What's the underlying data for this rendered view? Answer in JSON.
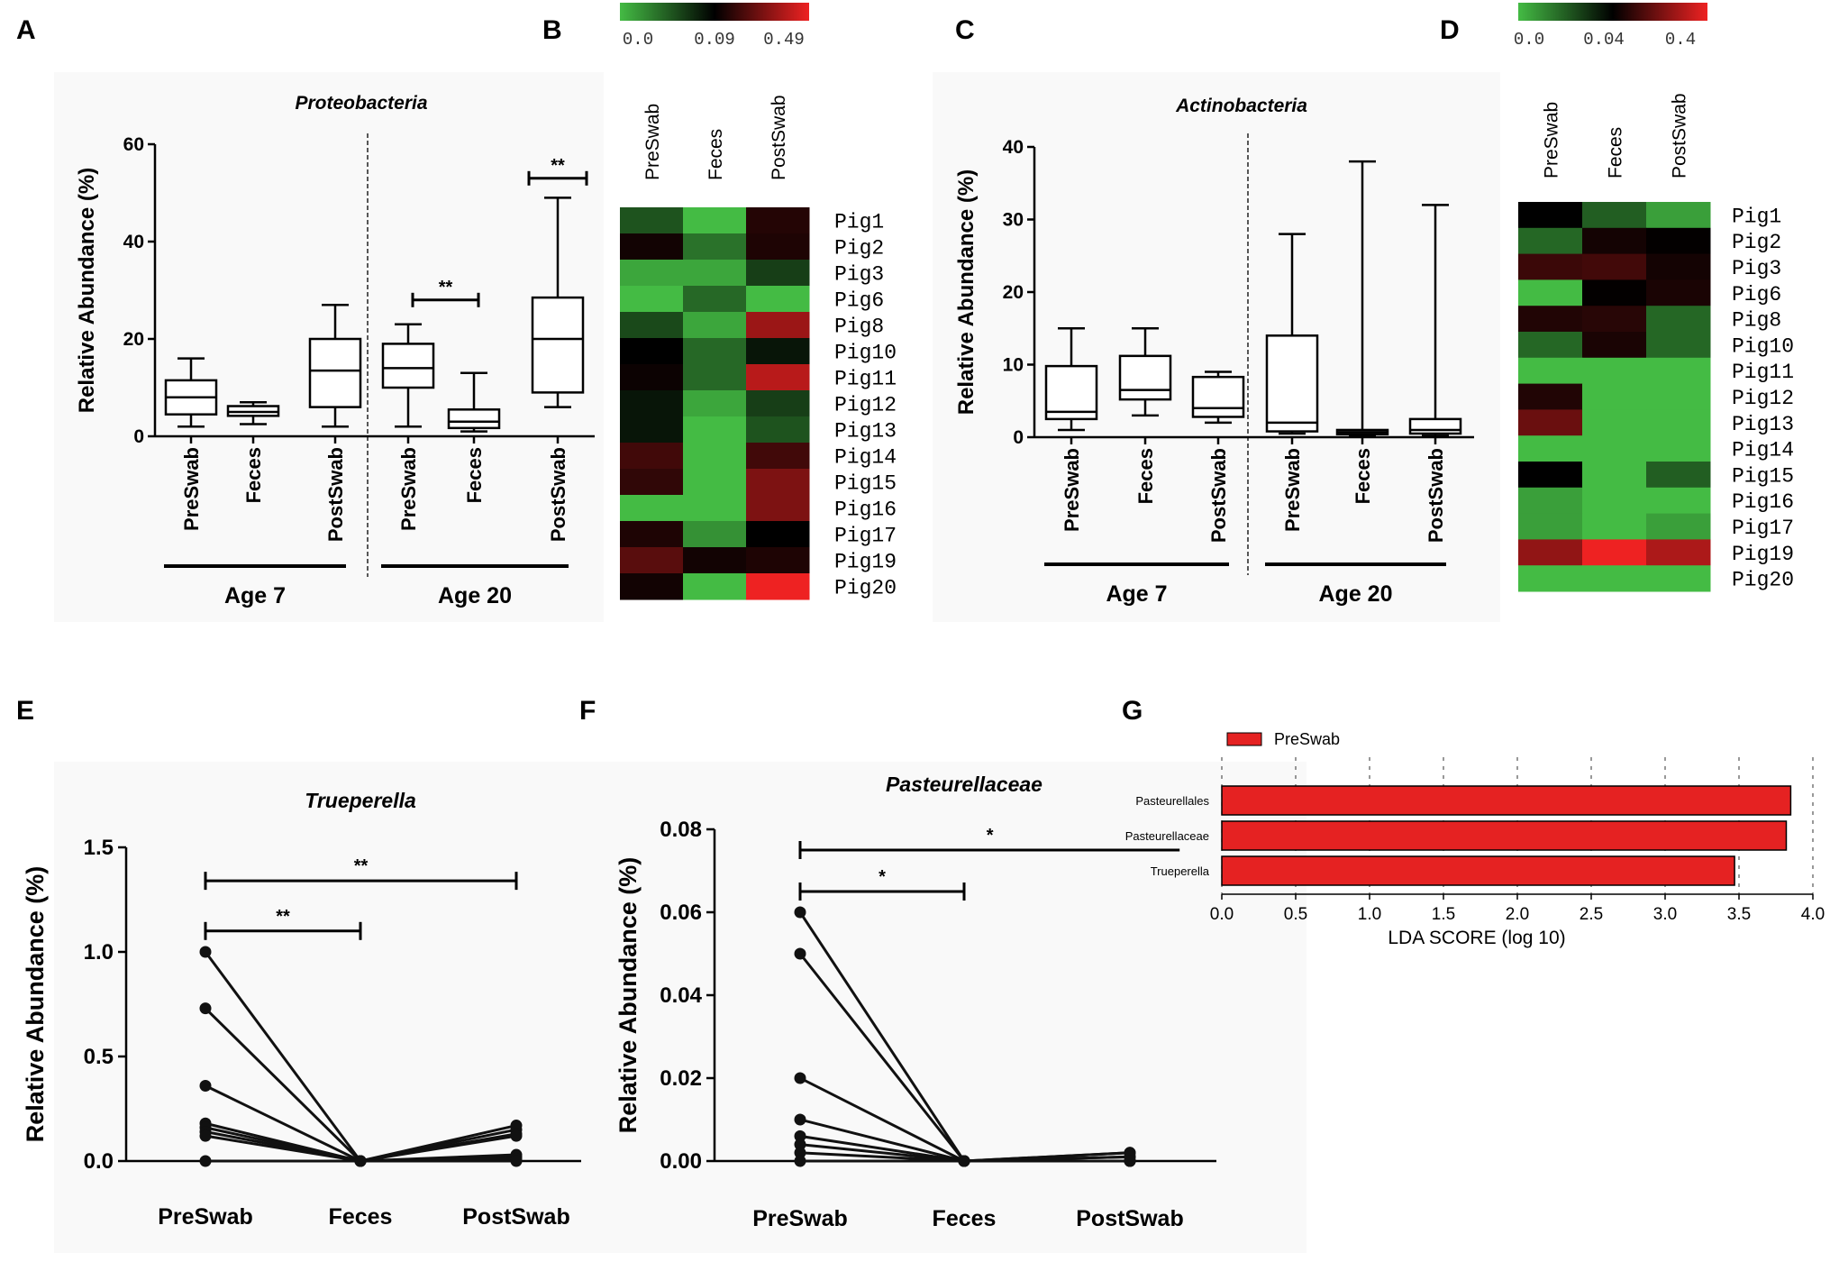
{
  "figure": {
    "panel_letters": [
      "A",
      "B",
      "C",
      "D",
      "E",
      "F",
      "G"
    ]
  },
  "chart_data": [
    {
      "id": "A",
      "type": "box",
      "title": "Proteobacteria",
      "ylabel": "Relative Abundance (%)",
      "ylim": [
        0,
        60
      ],
      "yticks": [
        0,
        20,
        40,
        60
      ],
      "categories": [
        "PreSwab",
        "Feces",
        "PostSwab",
        "PreSwab",
        "Feces",
        "PostSwab"
      ],
      "groups": [
        {
          "label": "Age 7",
          "from": 0,
          "to": 2
        },
        {
          "label": "Age 20",
          "from": 3,
          "to": 5
        }
      ],
      "boxes": [
        {
          "min": 2,
          "q1": 4.5,
          "median": 8,
          "q3": 11.5,
          "max": 16
        },
        {
          "min": 2.5,
          "q1": 4.2,
          "median": 5,
          "q3": 6.2,
          "max": 7
        },
        {
          "min": 2,
          "q1": 6,
          "median": 13.5,
          "q3": 20,
          "max": 27
        },
        {
          "min": 2,
          "q1": 10,
          "median": 14,
          "q3": 19,
          "max": 23
        },
        {
          "min": 1,
          "q1": 1.7,
          "median": 3,
          "q3": 5.5,
          "max": 13
        },
        {
          "min": 6,
          "q1": 9,
          "median": 20,
          "q3": 28.5,
          "max": 49
        }
      ],
      "annotations": [
        {
          "text": "**",
          "from": 3,
          "to": 4,
          "y": 28
        },
        {
          "text": "**",
          "from": 5,
          "to": 5,
          "y": 53
        }
      ]
    },
    {
      "id": "B",
      "type": "heatmap",
      "columns": [
        "PreSwab",
        "Feces",
        "PostSwab"
      ],
      "rows": [
        "Pig1",
        "Pig2",
        "Pig3",
        "Pig6",
        "Pig8",
        "Pig10",
        "Pig11",
        "Pig12",
        "Pig13",
        "Pig14",
        "Pig15",
        "Pig16",
        "Pig17",
        "Pig19",
        "Pig20"
      ],
      "values": [
        [
          0.05,
          0.0,
          0.15
        ],
        [
          0.12,
          0.035,
          0.14
        ],
        [
          0.01,
          0.01,
          0.06
        ],
        [
          0.0,
          0.04,
          0.0
        ],
        [
          0.055,
          0.01,
          0.35
        ],
        [
          0.09,
          0.04,
          0.08
        ],
        [
          0.11,
          0.04,
          0.4
        ],
        [
          0.08,
          0.01,
          0.06
        ],
        [
          0.08,
          0.0,
          0.05
        ],
        [
          0.2,
          0.0,
          0.2
        ],
        [
          0.17,
          0.0,
          0.3
        ],
        [
          0.0,
          0.0,
          0.3
        ],
        [
          0.14,
          0.02,
          0.09
        ],
        [
          0.24,
          0.12,
          0.14
        ],
        [
          0.12,
          0.0,
          0.49
        ]
      ],
      "colorbar": {
        "ticks": [
          "0.0",
          "0.09",
          "0.49"
        ],
        "min": 0.0,
        "mid": 0.09,
        "max": 0.49,
        "colors": [
          "#44bb44",
          "#000000",
          "#ee2222"
        ]
      }
    },
    {
      "id": "C",
      "type": "box",
      "title": "Actinobacteria",
      "ylabel": "Relative Abundance (%)",
      "ylim": [
        0,
        40
      ],
      "yticks": [
        0,
        10,
        20,
        30,
        40
      ],
      "categories": [
        "PreSwab",
        "Feces",
        "PostSwab",
        "PreSwab",
        "Feces",
        "PostSwab"
      ],
      "groups": [
        {
          "label": "Age 7",
          "from": 0,
          "to": 2
        },
        {
          "label": "Age 20",
          "from": 3,
          "to": 5
        }
      ],
      "boxes": [
        {
          "min": 1,
          "q1": 2.5,
          "median": 3.5,
          "q3": 9.8,
          "max": 15
        },
        {
          "min": 3,
          "q1": 5.2,
          "median": 6.5,
          "q3": 11.2,
          "max": 15
        },
        {
          "min": 2,
          "q1": 2.8,
          "median": 4,
          "q3": 8.3,
          "max": 9
        },
        {
          "min": 0.5,
          "q1": 0.8,
          "median": 2,
          "q3": 14,
          "max": 28
        },
        {
          "min": 0.2,
          "q1": 0.4,
          "median": 0.7,
          "q3": 1,
          "max": 38
        },
        {
          "min": 0.2,
          "q1": 0.5,
          "median": 1,
          "q3": 2.5,
          "max": 32
        }
      ]
    },
    {
      "id": "D",
      "type": "heatmap",
      "columns": [
        "PreSwab",
        "Feces",
        "PostSwab"
      ],
      "rows": [
        "Pig1",
        "Pig2",
        "Pig3",
        "Pig6",
        "Pig8",
        "Pig10",
        "Pig11",
        "Pig12",
        "Pig13",
        "Pig14",
        "Pig15",
        "Pig16",
        "Pig17",
        "Pig19",
        "Pig20"
      ],
      "values": [
        [
          0.04,
          0.02,
          0.006
        ],
        [
          0.018,
          0.07,
          0.045
        ],
        [
          0.13,
          0.14,
          0.07
        ],
        [
          0.0,
          0.045,
          0.08
        ],
        [
          0.09,
          0.1,
          0.018
        ],
        [
          0.018,
          0.08,
          0.018
        ],
        [
          0.0,
          0.0,
          0.0
        ],
        [
          0.09,
          0.0,
          0.0
        ],
        [
          0.2,
          0.0,
          0.0
        ],
        [
          0.0,
          0.0,
          0.0
        ],
        [
          0.04,
          0.0,
          0.02
        ],
        [
          0.006,
          0.0,
          0.0
        ],
        [
          0.006,
          0.0,
          0.006
        ],
        [
          0.26,
          0.4,
          0.3
        ],
        [
          0.0,
          0.0,
          0.0
        ]
      ],
      "colorbar": {
        "ticks": [
          "0.0",
          "0.04",
          "0.4"
        ],
        "min": 0.0,
        "mid": 0.04,
        "max": 0.4,
        "colors": [
          "#44bb44",
          "#000000",
          "#ee2222"
        ]
      }
    },
    {
      "id": "E",
      "type": "line",
      "title": "Trueperella",
      "ylabel": "Relative Abundance (%)",
      "ylim": [
        0,
        1.5
      ],
      "yticks": [
        "0.0",
        "0.5",
        "1.0",
        "1.5"
      ],
      "categories": [
        "PreSwab",
        "Feces",
        "PostSwab"
      ],
      "series": [
        {
          "values": [
            1.0,
            0.0,
            0.15
          ]
        },
        {
          "values": [
            0.73,
            0.0,
            0.17
          ]
        },
        {
          "values": [
            0.36,
            0.0,
            0.13
          ]
        },
        {
          "values": [
            0.18,
            0.0,
            0.12
          ]
        },
        {
          "values": [
            0.16,
            0.0,
            0.03
          ]
        },
        {
          "values": [
            0.14,
            0.0,
            0.02
          ]
        },
        {
          "values": [
            0.12,
            0.0,
            0.01
          ]
        },
        {
          "values": [
            0.0,
            0.0,
            0.0
          ]
        }
      ],
      "annotations": [
        {
          "text": "**",
          "from": 0,
          "to": 1,
          "y": 1.1
        },
        {
          "text": "**",
          "from": 0,
          "to": 2,
          "y": 1.34
        }
      ]
    },
    {
      "id": "F",
      "type": "line",
      "title": "Pasteurellaceae",
      "ylabel": "Relative Abundance (%)",
      "ylim": [
        0,
        0.08
      ],
      "yticks": [
        "0.00",
        "0.02",
        "0.04",
        "0.06",
        "0.08"
      ],
      "categories": [
        "PreSwab",
        "Feces",
        "PostSwab"
      ],
      "series": [
        {
          "values": [
            0.06,
            0.0,
            0.002
          ]
        },
        {
          "values": [
            0.05,
            0.0,
            0.001
          ]
        },
        {
          "values": [
            0.02,
            0.0,
            0.0
          ]
        },
        {
          "values": [
            0.01,
            0.0,
            0.002
          ]
        },
        {
          "values": [
            0.006,
            0.0,
            0.0
          ]
        },
        {
          "values": [
            0.004,
            0.0,
            0.0
          ]
        },
        {
          "values": [
            0.002,
            0.0,
            0.001
          ]
        },
        {
          "values": [
            0.0,
            0.0,
            0.0
          ]
        }
      ],
      "annotations": [
        {
          "text": "*",
          "from": 0,
          "to": 1,
          "y": 0.065
        },
        {
          "text": "*",
          "from": 0,
          "to": 2.3,
          "y": 0.075
        }
      ]
    },
    {
      "id": "G",
      "type": "bar",
      "orientation": "horizontal",
      "legend": "PreSwab",
      "legend_color": "#e52222",
      "xlabel": "LDA SCORE (log 10)",
      "xlim": [
        0,
        4.0
      ],
      "xticks": [
        "0.0",
        "0.5",
        "1.0",
        "1.5",
        "2.0",
        "2.5",
        "3.0",
        "3.5",
        "4.0"
      ],
      "categories": [
        "Pasteurellales",
        "Pasteurellaceae",
        "Trueperella"
      ],
      "values": [
        3.85,
        3.82,
        3.47
      ]
    }
  ]
}
